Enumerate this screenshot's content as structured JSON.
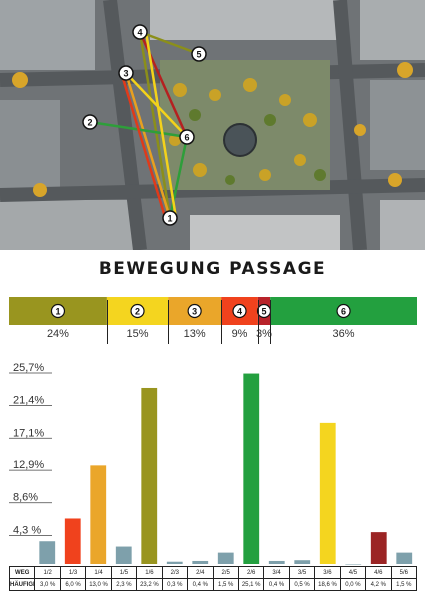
{
  "title": "BEWEGUNG PASSAGE",
  "map": {
    "markers": [
      "1",
      "2",
      "3",
      "4",
      "5",
      "6"
    ],
    "route_colors": [
      "#8b8f1a",
      "#f3d21a",
      "#e8a020",
      "#e03a1a",
      "#b52020",
      "#2e9e3a"
    ]
  },
  "share": {
    "segments": [
      {
        "label": "1",
        "value": 24,
        "text": "24%",
        "color": "#99951f"
      },
      {
        "label": "2",
        "value": 15,
        "text": "15%",
        "color": "#f4d51f"
      },
      {
        "label": "3",
        "value": 13,
        "text": "13%",
        "color": "#eaa62a"
      },
      {
        "label": "4",
        "value": 9,
        "text": "9%",
        "color": "#f0421d"
      },
      {
        "label": "5",
        "value": 3,
        "text": "3%",
        "color": "#b8232a"
      },
      {
        "label": "6",
        "value": 36,
        "text": "36%",
        "color": "#23a03f"
      }
    ]
  },
  "chart_data": {
    "type": "bar",
    "yticks": [
      "25,7%",
      "21,4%",
      "17,1%",
      "12,9%",
      "8,6%",
      "4,3 %"
    ],
    "ytick_values": [
      25.7,
      21.4,
      17.1,
      12.9,
      8.6,
      4.3
    ],
    "ylim": [
      0,
      25.7
    ],
    "categories": [
      "1/2",
      "1/3",
      "1/4",
      "1/5",
      "1/6",
      "2/3",
      "2/4",
      "2/5",
      "2/6",
      "3/4",
      "3/5",
      "3/6",
      "4/5",
      "4/6",
      "5/6"
    ],
    "values": [
      3.0,
      6.0,
      13.0,
      2.3,
      23.2,
      0.3,
      0.4,
      1.5,
      25.1,
      0.4,
      0.5,
      18.6,
      0.0,
      4.2,
      1.5
    ],
    "colors": [
      "#7ea0ab",
      "#f0421d",
      "#eaa62a",
      "#7ea0ab",
      "#99951f",
      "#7ea0ab",
      "#7ea0ab",
      "#7ea0ab",
      "#23a03f",
      "#7ea0ab",
      "#7ea0ab",
      "#f4d51f",
      "#7ea0ab",
      "#9b2424",
      "#7ea0ab"
    ]
  },
  "table": {
    "row1_label": "WEG",
    "row2_label": "HÄUFIGKEIT",
    "values": [
      "3,0 %",
      "6,0 %",
      "13,0 %",
      "2,3 %",
      "23,2 %",
      "0,3 %",
      "0,4 %",
      "1,5 %",
      "25,1 %",
      "0,4 %",
      "0,5 %",
      "18,6 %",
      "0,0 %",
      "4,2 %",
      "1,5 %"
    ]
  }
}
